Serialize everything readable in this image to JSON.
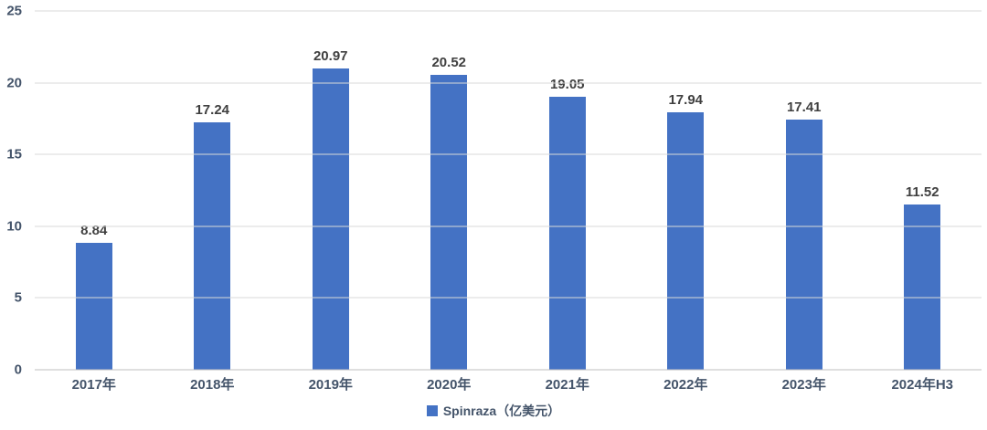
{
  "chart_data": {
    "type": "bar",
    "categories": [
      "2017年",
      "2018年",
      "2019年",
      "2020年",
      "2021年",
      "2022年",
      "2023年",
      "2024年H3"
    ],
    "values": [
      8.84,
      17.24,
      20.97,
      20.52,
      19.05,
      17.94,
      17.41,
      11.52
    ],
    "value_labels": [
      "8.84",
      "17.24",
      "20.97",
      "20.52",
      "19.05",
      "17.94",
      "17.41",
      "11.52"
    ],
    "series_name": "Spinraza（亿美元）",
    "title": "",
    "xlabel": "",
    "ylabel": "",
    "ylim": [
      0,
      25
    ],
    "yticks": [
      0,
      5,
      10,
      15,
      20,
      25
    ],
    "grid": true,
    "legend_position": "bottom",
    "bar_color": "#4472C4"
  },
  "legend": {
    "label": "Spinraza（亿美元）"
  },
  "colors": {
    "bar": "#4472C4",
    "gridline": "#d9d9d9",
    "baseline": "#bfbfbf",
    "value_label": "#404040",
    "axis_label": "#44546A"
  }
}
